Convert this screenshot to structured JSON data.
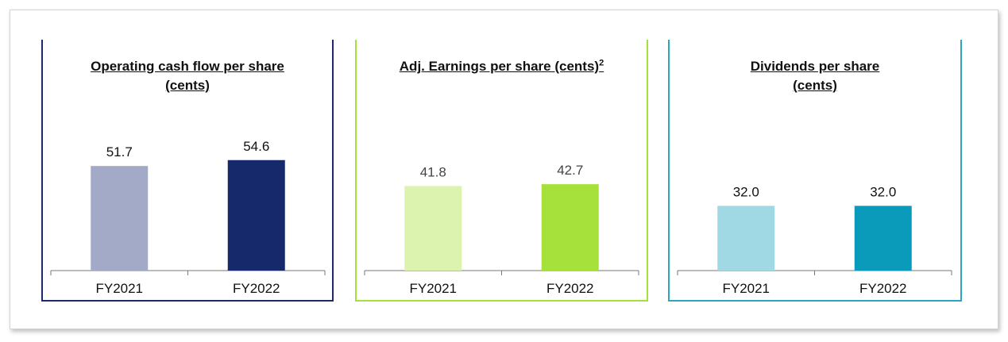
{
  "chart_data": [
    {
      "type": "bar",
      "title": "Operating cash flow per share (cents)",
      "frame_color": "#1f2a6b",
      "categories": [
        "FY2021",
        "FY2022"
      ],
      "values": [
        51.7,
        54.6
      ],
      "value_labels": [
        "51.7",
        "54.6"
      ],
      "colors": [
        "#a2aac8",
        "#16296b"
      ]
    },
    {
      "type": "bar",
      "title": "Adj. Earnings per share (cents)",
      "title_note": "2",
      "frame_color": "#a6e03a",
      "categories": [
        "FY2021",
        "FY2022"
      ],
      "values": [
        41.8,
        42.7
      ],
      "value_labels": [
        "41.8",
        "42.7"
      ],
      "colors": [
        "#dcf3b0",
        "#a6e03a"
      ]
    },
    {
      "type": "bar",
      "title": "Dividends per share (cents)",
      "frame_color": "#2aa6c0",
      "categories": [
        "FY2021",
        "FY2022"
      ],
      "values": [
        32.0,
        32.0
      ],
      "value_labels": [
        "32.0",
        "32.0"
      ],
      "colors": [
        "#a0d9e3",
        "#0a9bbb"
      ]
    }
  ]
}
